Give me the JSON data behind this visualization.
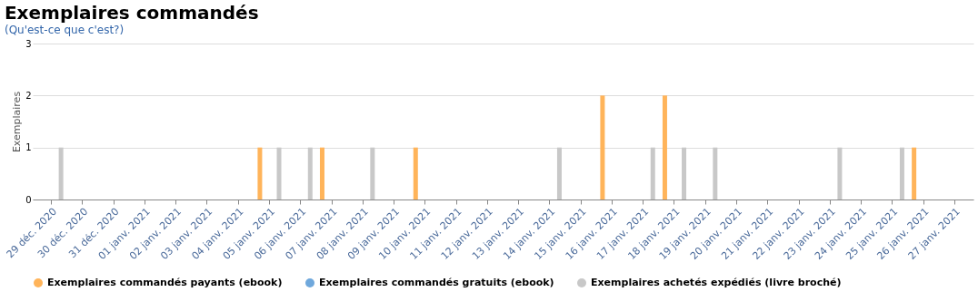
{
  "chart_data": {
    "type": "bar",
    "title": "Exemplaires commandés",
    "subtitle": "(Qu'est-ce que c'est?)",
    "ylabel": "Exemplaires",
    "categories": [
      "29 déc. 2020",
      "30 déc. 2020",
      "31 déc. 2020",
      "01 janv. 2021",
      "02 janv. 2021",
      "03 janv. 2021",
      "04 janv. 2021",
      "05 janv. 2021",
      "06 janv. 2021",
      "07 janv. 2021",
      "08 janv. 2021",
      "09 janv. 2021",
      "10 janv. 2021",
      "11 janv. 2021",
      "12 janv. 2021",
      "13 janv. 2021",
      "14 janv. 2021",
      "15 janv. 2021",
      "16 janv. 2021",
      "17 janv. 2021",
      "18 janv. 2021",
      "19 janv. 2021",
      "20 janv. 2021",
      "21 janv. 2021",
      "22 janv. 2021",
      "23 janv. 2021",
      "24 janv. 2021",
      "25 janv. 2021",
      "26 janv. 2021",
      "27 janv. 2021"
    ],
    "series": [
      {
        "name": "Exemplaires commandés payants (ebook)",
        "color": "#ffb45a",
        "values": [
          0,
          0,
          0,
          0,
          0,
          0,
          0,
          1,
          0,
          1,
          0,
          0,
          1,
          0,
          0,
          0,
          0,
          0,
          2,
          0,
          2,
          0,
          0,
          0,
          0,
          0,
          0,
          0,
          1,
          0
        ]
      },
      {
        "name": "Exemplaires commandés gratuits (ebook)",
        "color": "#6fa8dc",
        "values": [
          0,
          0,
          0,
          0,
          0,
          0,
          0,
          0,
          0,
          0,
          0,
          0,
          0,
          0,
          0,
          0,
          0,
          0,
          0,
          0,
          0,
          0,
          0,
          0,
          0,
          0,
          0,
          0,
          0,
          0
        ]
      },
      {
        "name": "Exemplaires achetés expédiés (livre broché)",
        "color": "#c8c8c8",
        "values": [
          1,
          0,
          0,
          0,
          0,
          0,
          0,
          1,
          1,
          0,
          1,
          0,
          0,
          0,
          0,
          0,
          1,
          0,
          0,
          1,
          1,
          1,
          0,
          0,
          0,
          1,
          0,
          1,
          0,
          0
        ]
      }
    ],
    "ylim": [
      0,
      3
    ],
    "yticks": [
      0,
      1,
      2,
      3
    ],
    "grid": "y",
    "legend": "bottom"
  }
}
